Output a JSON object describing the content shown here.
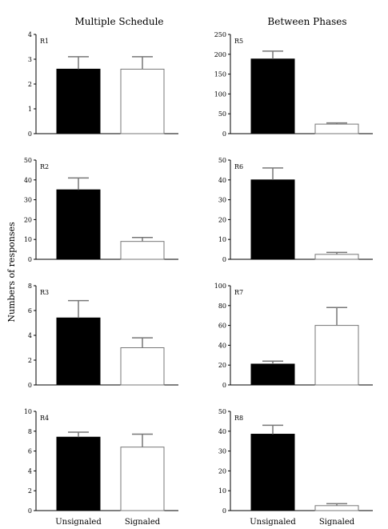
{
  "column_titles": [
    "Multiple Schedule",
    "Between Phases"
  ],
  "ylabel": "Numbers of responses",
  "chart_data": [
    {
      "type": "bar",
      "panel": "R1",
      "categories": [
        "Unsignaled",
        "Signaled"
      ],
      "values": [
        2.6,
        2.6
      ],
      "errors": [
        0.5,
        0.5
      ],
      "ylim": [
        0,
        4
      ],
      "yticks": [
        0,
        1,
        2,
        3,
        4
      ],
      "fills": [
        "#000000",
        "#ffffff"
      ]
    },
    {
      "type": "bar",
      "panel": "R2",
      "categories": [
        "Unsignaled",
        "Signaled"
      ],
      "values": [
        35,
        9
      ],
      "errors": [
        6,
        2
      ],
      "ylim": [
        0,
        50
      ],
      "yticks": [
        0,
        10,
        20,
        30,
        40,
        50
      ],
      "fills": [
        "#000000",
        "#ffffff"
      ]
    },
    {
      "type": "bar",
      "panel": "R3",
      "categories": [
        "Unsignaled",
        "Signaled"
      ],
      "values": [
        5.4,
        3.0
      ],
      "errors": [
        1.4,
        0.8
      ],
      "ylim": [
        0,
        8
      ],
      "yticks": [
        0,
        2,
        4,
        6,
        8
      ],
      "fills": [
        "#000000",
        "#ffffff"
      ]
    },
    {
      "type": "bar",
      "panel": "R4",
      "categories": [
        "Unsignaled",
        "Signaled"
      ],
      "values": [
        7.4,
        6.4
      ],
      "errors": [
        0.5,
        1.3
      ],
      "ylim": [
        0,
        10
      ],
      "yticks": [
        0,
        2,
        4,
        6,
        8,
        10
      ],
      "fills": [
        "#000000",
        "#ffffff"
      ]
    },
    {
      "type": "bar",
      "panel": "R5",
      "categories": [
        "Unsignaled",
        "Signaled"
      ],
      "values": [
        188,
        24
      ],
      "errors": [
        20,
        3
      ],
      "ylim": [
        0,
        250
      ],
      "yticks": [
        0,
        50,
        100,
        150,
        200,
        250
      ],
      "fills": [
        "#000000",
        "#ffffff"
      ]
    },
    {
      "type": "bar",
      "panel": "R6",
      "categories": [
        "Unsignaled",
        "Signaled"
      ],
      "values": [
        40,
        2.5
      ],
      "errors": [
        6,
        1
      ],
      "ylim": [
        0,
        50
      ],
      "yticks": [
        0,
        10,
        20,
        30,
        40,
        50
      ],
      "fills": [
        "#000000",
        "#ffffff"
      ]
    },
    {
      "type": "bar",
      "panel": "R7",
      "categories": [
        "Unsignaled",
        "Signaled"
      ],
      "values": [
        21,
        60
      ],
      "errors": [
        3,
        18
      ],
      "ylim": [
        0,
        100
      ],
      "yticks": [
        0,
        20,
        40,
        60,
        80,
        100
      ],
      "fills": [
        "#000000",
        "#ffffff"
      ]
    },
    {
      "type": "bar",
      "panel": "R8",
      "categories": [
        "Unsignaled",
        "Signaled"
      ],
      "values": [
        38.5,
        2.5
      ],
      "errors": [
        4.5,
        1
      ],
      "ylim": [
        0,
        50
      ],
      "yticks": [
        0,
        10,
        20,
        30,
        40,
        50
      ],
      "fills": [
        "#000000",
        "#ffffff"
      ]
    }
  ]
}
